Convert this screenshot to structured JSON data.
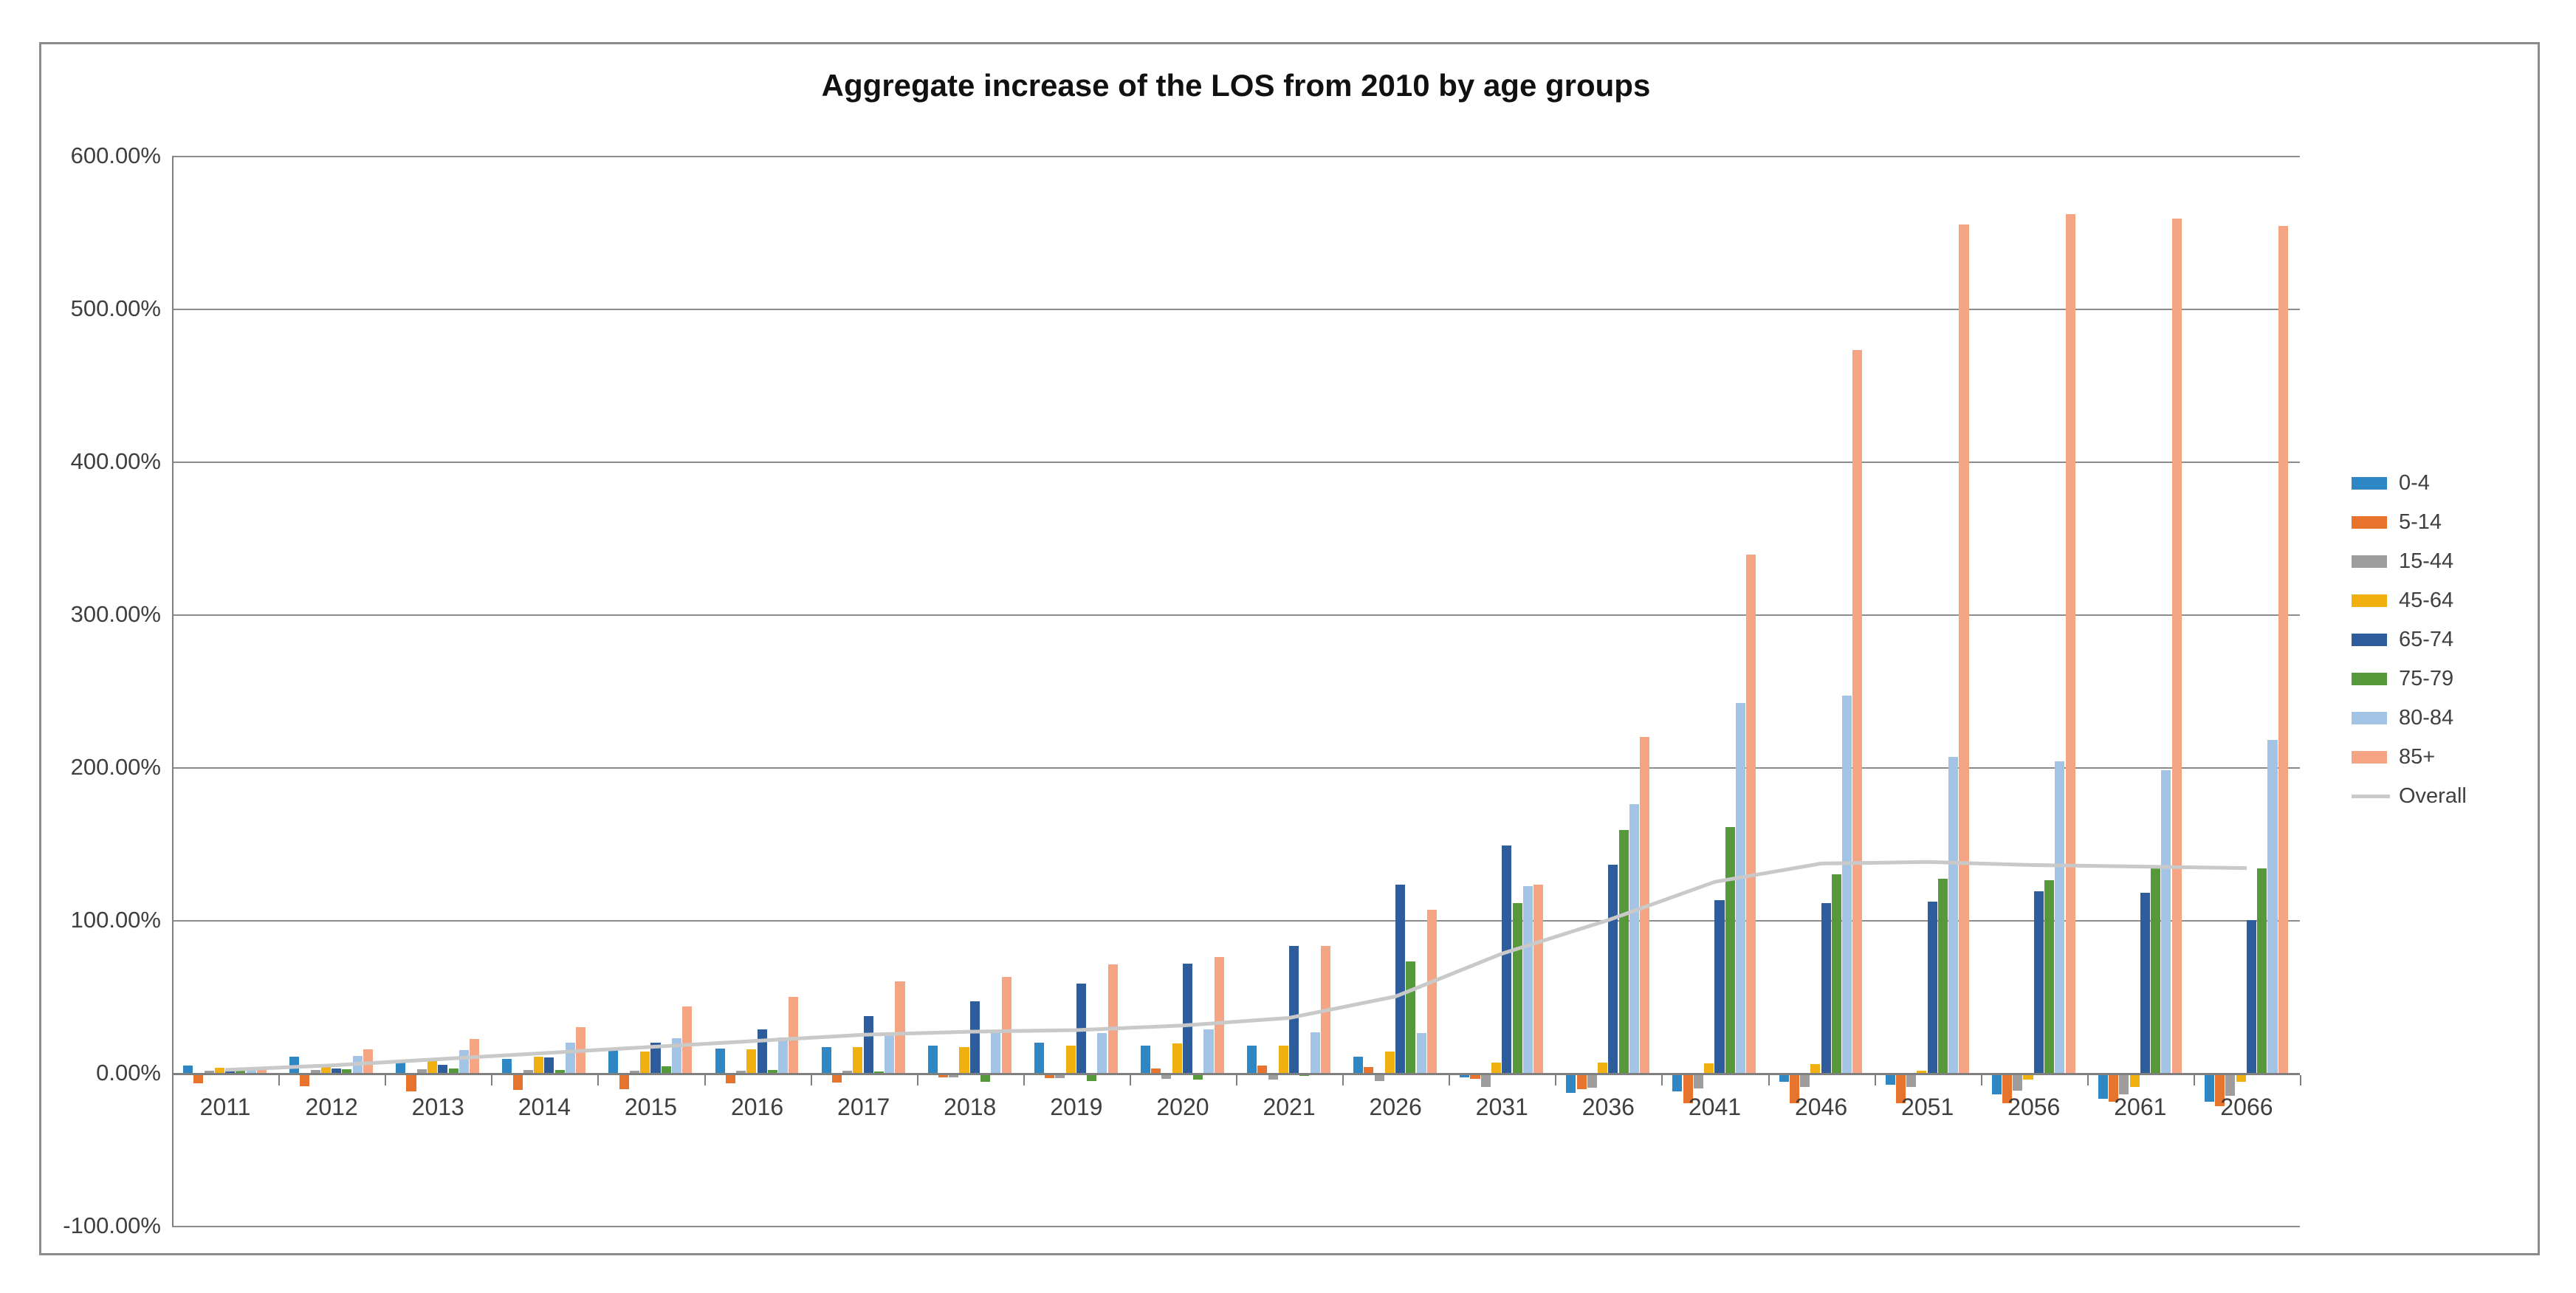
{
  "chart_data": {
    "type": "bar",
    "title": "Aggregate increase of the LOS from 2010 by age groups",
    "categories": [
      "2011",
      "2012",
      "2013",
      "2014",
      "2015",
      "2016",
      "2017",
      "2018",
      "2019",
      "2020",
      "2021",
      "2026",
      "2031",
      "2036",
      "2041",
      "2046",
      "2051",
      "2056",
      "2061",
      "2066"
    ],
    "series": [
      {
        "name": "0-4",
        "color": "#2e87c3",
        "values": [
          5,
          10.5,
          7,
          9,
          15,
          16,
          17,
          18,
          20,
          18,
          18,
          10.5,
          -2,
          -12,
          -11,
          -5,
          -7,
          -13,
          -16,
          -18
        ]
      },
      {
        "name": "5-14",
        "color": "#e8732c",
        "values": [
          -6,
          -7.5,
          -11,
          -10,
          -9.5,
          -6,
          -5.5,
          -2,
          -2.5,
          3,
          5,
          4,
          -3,
          -9.5,
          -19,
          -19,
          -19,
          -19,
          -18,
          -21
        ]
      },
      {
        "name": "15-44",
        "color": "#9d9d9d",
        "values": [
          1.5,
          2,
          2.5,
          2,
          1.5,
          1.5,
          1.5,
          -2,
          -2.5,
          -3,
          -3.5,
          -4.5,
          -8,
          -8.5,
          -9,
          -8,
          -8,
          -10.5,
          -13,
          -14
        ]
      },
      {
        "name": "45-64",
        "color": "#efb010",
        "values": [
          3.5,
          5.5,
          7.5,
          10.5,
          14,
          15.5,
          17,
          17,
          18,
          19.5,
          18,
          14,
          7,
          7,
          6.5,
          6,
          1.5,
          -3.5,
          -8,
          -5
        ]
      },
      {
        "name": "65-74",
        "color": "#2f5d9c",
        "values": [
          2,
          3,
          5.5,
          10,
          20,
          28.5,
          37,
          47,
          58.5,
          71.5,
          83,
          123,
          149,
          136,
          113,
          111,
          112,
          119,
          118,
          100
        ]
      },
      {
        "name": "75-79",
        "color": "#55993b",
        "values": [
          2,
          2.5,
          3,
          2,
          4.5,
          2,
          1,
          -5,
          -4.5,
          -3.5,
          -1,
          73,
          111,
          159,
          161,
          130,
          127,
          126,
          134,
          134
        ]
      },
      {
        "name": "80-84",
        "color": "#a3c4e5",
        "values": [
          3,
          11,
          15,
          20,
          22.5,
          23,
          26,
          27,
          26,
          28.5,
          26.5,
          26,
          122,
          176,
          242,
          247,
          207,
          204,
          198,
          218
        ]
      },
      {
        "name": "85+",
        "color": "#f5a583",
        "values": [
          4,
          15.5,
          22,
          30,
          43.5,
          50,
          60,
          63,
          71,
          76,
          83,
          107,
          123,
          220,
          339,
          473,
          555,
          562,
          559,
          554
        ]
      }
    ],
    "line_series": {
      "name": "Overall",
      "color": "#c9c9c9",
      "values": [
        2,
        5,
        9,
        13,
        17,
        21,
        25,
        27,
        28,
        31,
        36,
        50,
        78,
        100,
        125,
        137,
        138,
        136,
        135,
        134
      ]
    },
    "y_axis": {
      "tick_labels": [
        "600.00%",
        "500.00%",
        "400.00%",
        "300.00%",
        "200.00%",
        "100.00%",
        "0.00%",
        "-100.00%"
      ],
      "tick_values": [
        600,
        500,
        400,
        300,
        200,
        100,
        0,
        -100
      ],
      "min": -100,
      "max": 600
    },
    "grid": true,
    "legend_position": "right"
  }
}
